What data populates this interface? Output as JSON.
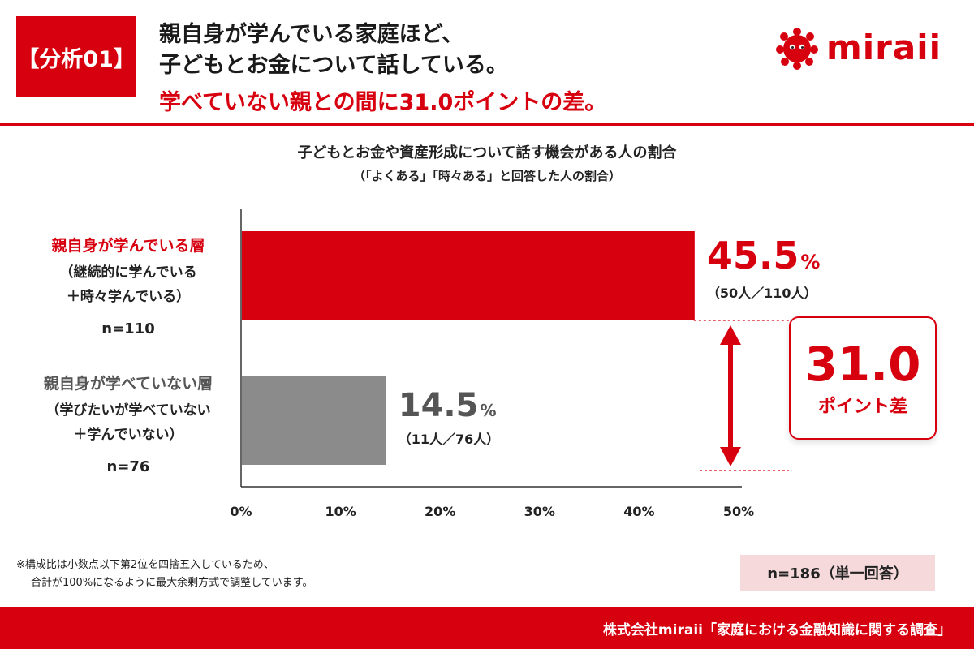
{
  "header": {
    "tag": "【分析01】",
    "headline_line1": "親自身が学んでいる家庭ほど、",
    "headline_line2": "子どもとお金について話している。",
    "headline_line3": "学べていない親との間に31.0ポイントの差。",
    "logo_text": "miraii",
    "logo_icon": "red-blob-mascot-icon"
  },
  "chart_data": {
    "type": "bar",
    "orientation": "horizontal",
    "title": "子どもとお金や資産形成について話す機会がある人の割合",
    "subtitle": "（「よくある」「時々ある」と回答した人の割合）",
    "categories": [
      {
        "label": "親自身が学んでいる層",
        "sublabel_line1": "（継続的に学んでいる",
        "sublabel_line2": "＋時々学んでいる）",
        "n_label": "n=110",
        "value": 45.5,
        "value_text": "45.5",
        "unit": "%",
        "count_text": "（50人／110人）",
        "color": "#d7000f",
        "label_color": "#d7000f"
      },
      {
        "label": "親自身が学べていない層",
        "sublabel_line1": "（学びたいが学べていない",
        "sublabel_line2": "＋学んでいない）",
        "n_label": "n=76",
        "value": 14.5,
        "value_text": "14.5",
        "unit": "%",
        "count_text": "（11人／76人）",
        "color": "#8c8b8c",
        "label_color": "#555555"
      }
    ],
    "xlim": [
      0,
      50
    ],
    "x_ticks": [
      "0%",
      "10%",
      "20%",
      "30%",
      "40%",
      "50%"
    ],
    "grid": false,
    "difference": {
      "value_text": "31.0",
      "label": "ポイント差"
    }
  },
  "note_line1": "※構成比は小数点以下第2位を四捨五入しているため、",
  "note_line2": "合計が100%になるように最大余剰方式で調整しています。",
  "sample_label": "n=186（単一回答）",
  "footer": "株式会社miraii「家庭における金融知識に関する調査」",
  "colors": {
    "accent": "#d7000f",
    "gray_bar": "#8c8b8c",
    "sample_bg": "#f6dadb"
  }
}
